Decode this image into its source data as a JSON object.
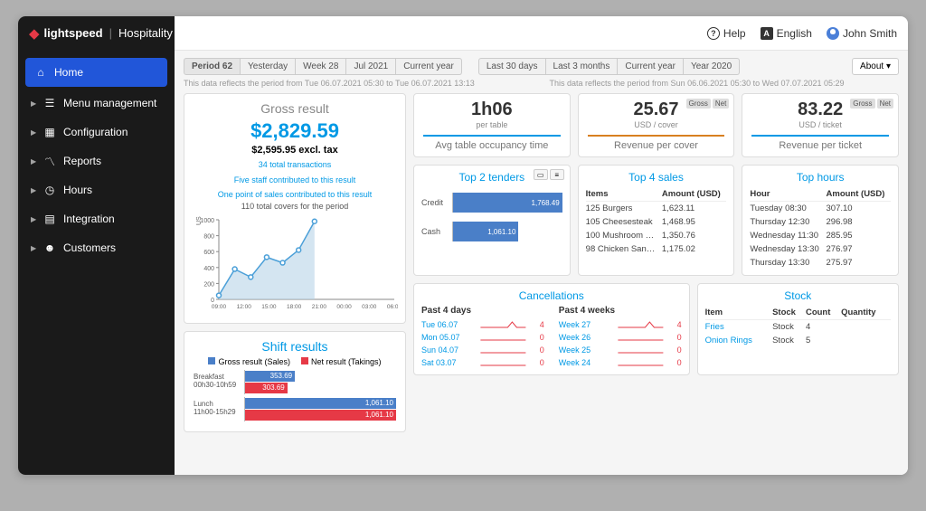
{
  "brand": {
    "name": "lightspeed",
    "sub": "Hospitality"
  },
  "topbar": {
    "help": "Help",
    "lang": "English",
    "user": "John Smith"
  },
  "sidebar": {
    "items": [
      {
        "label": "Home",
        "active": true
      },
      {
        "label": "Menu management"
      },
      {
        "label": "Configuration"
      },
      {
        "label": "Reports"
      },
      {
        "label": "Hours"
      },
      {
        "label": "Integration"
      },
      {
        "label": "Customers"
      }
    ]
  },
  "tabs_left": [
    "Period 62",
    "Yesterday",
    "Week 28",
    "Jul 2021",
    "Current year"
  ],
  "tabs_right": [
    "Last 30 days",
    "Last 3 months",
    "Current year",
    "Year 2020"
  ],
  "about_label": "About",
  "period_left": "This data reflects the period from Tue 06.07.2021 05:30 to Tue 06.07.2021 13:13",
  "period_right": "This data reflects the period from Sun 06.06.2021 05:30 to Wed 07.07.2021 05:29",
  "gross": {
    "title": "Gross result",
    "value": "$2,829.59",
    "excl": "$2,595.95 excl. tax",
    "info1": "34 total transactions",
    "info2": "Five staff contributed to this result",
    "info3": "One point of sales contributed to this result",
    "info4": "110 total covers for the period",
    "chart": {
      "ylabel": "USD",
      "ymax": 1000,
      "yticks": [
        0,
        200,
        400,
        600,
        800,
        1000
      ],
      "xlabels": [
        "09:00",
        "12:00",
        "15:00",
        "18:00",
        "21:00",
        "00:00",
        "03:00",
        "06:00"
      ],
      "values": [
        50,
        380,
        280,
        530,
        460,
        620,
        980,
        0,
        0,
        0,
        0,
        0
      ],
      "line_color": "#4a9fd8",
      "fill_color": "#b8d4e8",
      "grid_color": "#ddd"
    }
  },
  "metrics": [
    {
      "value": "1h06",
      "sub": "per table",
      "label": "Avg table occupancy time",
      "accent": "#0099e5",
      "badges": false
    },
    {
      "value": "25.67",
      "sub": "USD / cover",
      "label": "Revenue per cover",
      "accent": "#d88020",
      "badges": true
    },
    {
      "value": "83.22",
      "sub": "USD / ticket",
      "label": "Revenue per ticket",
      "accent": "#0099e5",
      "badges": true
    }
  ],
  "gn_labels": {
    "gross": "Gross",
    "net": "Net"
  },
  "tenders": {
    "title": "Top 2 tenders",
    "rows": [
      {
        "label": "Credit",
        "value": "1,768.49",
        "pct": 100
      },
      {
        "label": "Cash",
        "value": "1,061.10",
        "pct": 60
      }
    ],
    "bar_color": "#4a7fc8"
  },
  "sales": {
    "title": "Top 4 sales",
    "columns": [
      "Items",
      "Amount (USD)"
    ],
    "rows": [
      [
        "125 Burgers",
        "1,623.11"
      ],
      [
        "105 Cheesesteak",
        "1,468.95"
      ],
      [
        "100 Mushroom …",
        "1,350.76"
      ],
      [
        "98 Chicken San…",
        "1,175.02"
      ]
    ]
  },
  "hours": {
    "title": "Top hours",
    "columns": [
      "Hour",
      "Amount (USD)"
    ],
    "rows": [
      [
        "Tuesday 08:30",
        "307.10"
      ],
      [
        "Thursday 12:30",
        "296.98"
      ],
      [
        "Wednesday 11:30",
        "285.95"
      ],
      [
        "Wednesday 13:30",
        "276.97"
      ],
      [
        "Thursday 13:30",
        "275.97"
      ]
    ]
  },
  "shift": {
    "title": "Shift results",
    "legend": [
      {
        "label": "Gross result (Sales)",
        "color": "#4a7fc8"
      },
      {
        "label": "Net result (Takings)",
        "color": "#e63946"
      }
    ],
    "shifts": [
      {
        "label": "Breakfast",
        "sub": "00h30-10h59",
        "gross": "353.69",
        "net": "303.69",
        "gross_pct": 33,
        "net_pct": 28
      },
      {
        "label": "Lunch",
        "sub": "11h00-15h29",
        "gross": "1,061.10",
        "net": "1,061.10",
        "gross_pct": 100,
        "net_pct": 100
      }
    ]
  },
  "cancellations": {
    "title": "Cancellations",
    "cols": [
      {
        "title": "Past 4 days",
        "rows": [
          {
            "label": "Tue 06.07",
            "count": "4",
            "spike": true
          },
          {
            "label": "Mon 05.07",
            "count": "0"
          },
          {
            "label": "Sun 04.07",
            "count": "0"
          },
          {
            "label": "Sat 03.07",
            "count": "0"
          }
        ]
      },
      {
        "title": "Past 4 weeks",
        "rows": [
          {
            "label": "Week 27",
            "count": "4",
            "spike": true
          },
          {
            "label": "Week 26",
            "count": "0"
          },
          {
            "label": "Week 25",
            "count": "0"
          },
          {
            "label": "Week 24",
            "count": "0"
          }
        ]
      }
    ],
    "spark_color": "#e63946"
  },
  "stock": {
    "title": "Stock",
    "columns": [
      "Item",
      "Stock",
      "Count",
      "Quantity"
    ],
    "rows": [
      [
        "Fries",
        "Stock",
        "4",
        ""
      ],
      [
        "Onion Rings",
        "Stock",
        "5",
        ""
      ]
    ]
  }
}
